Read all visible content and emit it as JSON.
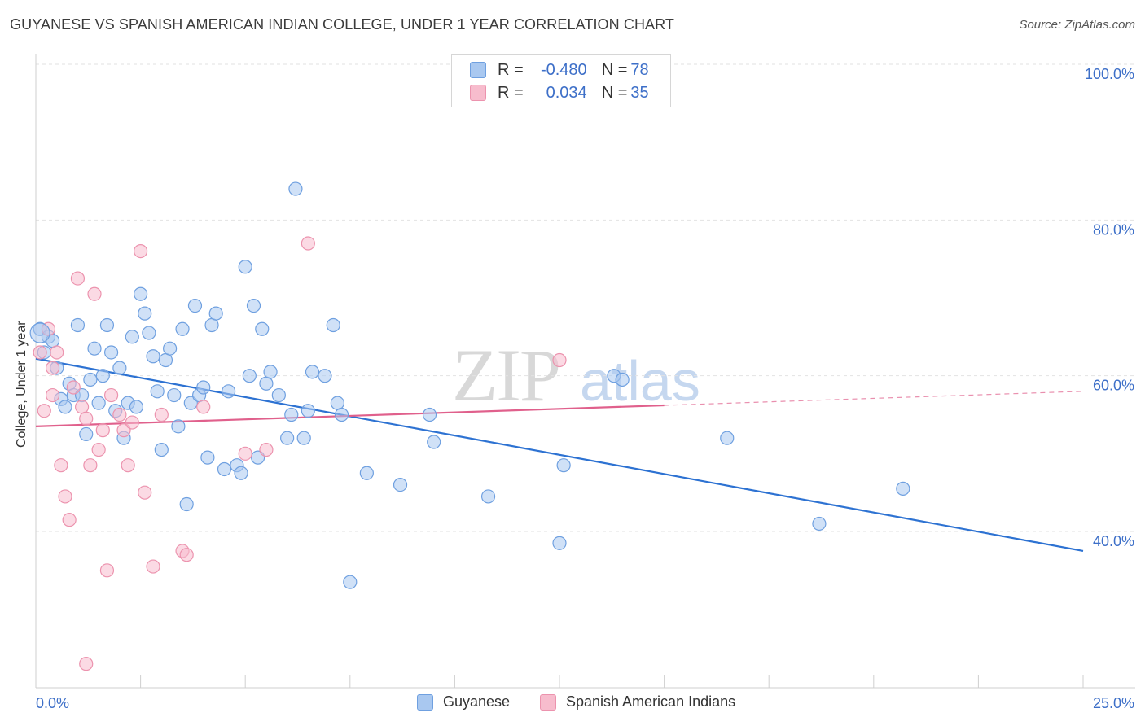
{
  "header": {
    "title": "GUYANESE VS SPANISH AMERICAN INDIAN COLLEGE, UNDER 1 YEAR CORRELATION CHART",
    "source": "Source: ZipAtlas.com"
  },
  "watermark": {
    "text_zip": "ZIP",
    "text_atlas": "atlas"
  },
  "legend": {
    "rows": [
      {
        "r_label": "R = ",
        "r_value": "-0.480",
        "n_label": "N = ",
        "n_value": "78",
        "color": "#a9c8f0"
      },
      {
        "r_label": "R = ",
        "r_value": "0.034",
        "n_label": "N = ",
        "n_value": "35",
        "color": "#f7bccd"
      }
    ]
  },
  "chart_data": {
    "type": "scatter",
    "title": "GUYANESE VS SPANISH AMERICAN INDIAN COLLEGE, UNDER 1 YEAR CORRELATION CHART",
    "xlabel": "",
    "ylabel": "College, Under 1 year",
    "xlim": [
      0,
      25
    ],
    "ylim": [
      20,
      102
    ],
    "x_ticks": [
      0,
      25
    ],
    "x_tick_labels": [
      "0.0%",
      "25.0%"
    ],
    "y_ticks": [
      40,
      60,
      80,
      100
    ],
    "y_tick_labels": [
      "40.0%",
      "60.0%",
      "80.0%",
      "100.0%"
    ],
    "grid": true,
    "legend_position": "top-center",
    "series": [
      {
        "name": "Guyanese",
        "color": "#6fa0e0",
        "fill": "#a9c8f0",
        "trend": {
          "x": [
            0,
            25
          ],
          "y": [
            62.2,
            37.5
          ],
          "color": "#2d72d2"
        },
        "points": [
          [
            0.1,
            66.0
          ],
          [
            0.2,
            63.0
          ],
          [
            0.3,
            65.0
          ],
          [
            0.4,
            64.5
          ],
          [
            0.5,
            61.0
          ],
          [
            0.6,
            57.0
          ],
          [
            0.7,
            56.0
          ],
          [
            0.8,
            59.0
          ],
          [
            0.9,
            57.5
          ],
          [
            1.0,
            66.5
          ],
          [
            1.1,
            57.5
          ],
          [
            1.2,
            52.5
          ],
          [
            1.3,
            59.5
          ],
          [
            1.4,
            63.5
          ],
          [
            1.5,
            56.5
          ],
          [
            1.6,
            60.0
          ],
          [
            1.7,
            66.5
          ],
          [
            1.8,
            63.0
          ],
          [
            1.9,
            55.5
          ],
          [
            2.0,
            61.0
          ],
          [
            2.1,
            52.0
          ],
          [
            2.2,
            56.5
          ],
          [
            2.3,
            65.0
          ],
          [
            2.4,
            56.0
          ],
          [
            2.5,
            70.5
          ],
          [
            2.6,
            68.0
          ],
          [
            2.7,
            65.5
          ],
          [
            2.8,
            62.5
          ],
          [
            2.9,
            58.0
          ],
          [
            3.0,
            50.5
          ],
          [
            3.1,
            62.0
          ],
          [
            3.2,
            63.5
          ],
          [
            3.3,
            57.5
          ],
          [
            3.4,
            53.5
          ],
          [
            3.5,
            66.0
          ],
          [
            3.6,
            43.5
          ],
          [
            3.7,
            56.5
          ],
          [
            3.8,
            69.0
          ],
          [
            3.9,
            57.5
          ],
          [
            4.0,
            58.5
          ],
          [
            4.1,
            49.5
          ],
          [
            4.2,
            66.5
          ],
          [
            4.3,
            68.0
          ],
          [
            4.5,
            48.0
          ],
          [
            4.6,
            58.0
          ],
          [
            4.8,
            48.5
          ],
          [
            4.9,
            47.5
          ],
          [
            5.0,
            74.0
          ],
          [
            5.1,
            60.0
          ],
          [
            5.2,
            69.0
          ],
          [
            5.3,
            49.5
          ],
          [
            5.4,
            66.0
          ],
          [
            5.5,
            59.0
          ],
          [
            5.6,
            60.5
          ],
          [
            5.8,
            57.5
          ],
          [
            6.0,
            52.0
          ],
          [
            6.1,
            55.0
          ],
          [
            6.2,
            84.0
          ],
          [
            6.4,
            52.0
          ],
          [
            6.5,
            55.5
          ],
          [
            6.6,
            60.5
          ],
          [
            6.9,
            60.0
          ],
          [
            7.2,
            56.5
          ],
          [
            7.1,
            66.5
          ],
          [
            7.3,
            55.0
          ],
          [
            7.5,
            33.5
          ],
          [
            7.9,
            47.5
          ],
          [
            8.7,
            46.0
          ],
          [
            9.4,
            55.0
          ],
          [
            9.5,
            51.5
          ],
          [
            10.8,
            44.5
          ],
          [
            12.5,
            38.5
          ],
          [
            12.6,
            48.5
          ],
          [
            13.8,
            60.0
          ],
          [
            14.0,
            59.5
          ],
          [
            16.5,
            52.0
          ],
          [
            18.7,
            41.0
          ],
          [
            20.7,
            45.5
          ]
        ]
      },
      {
        "name": "Spanish American Indians",
        "color": "#ec93ae",
        "fill": "#f7bccd",
        "trend": {
          "x": [
            0,
            15
          ],
          "y": [
            53.5,
            56.2
          ],
          "color": "#e0608c",
          "dashed_extension": {
            "x": [
              15,
              25
            ],
            "y": [
              56.2,
              58.0
            ]
          }
        },
        "points": [
          [
            0.1,
            63.0
          ],
          [
            0.2,
            55.5
          ],
          [
            0.3,
            66.0
          ],
          [
            0.4,
            61.0
          ],
          [
            0.5,
            63.0
          ],
          [
            0.6,
            48.5
          ],
          [
            0.7,
            44.5
          ],
          [
            0.8,
            41.5
          ],
          [
            0.9,
            58.5
          ],
          [
            1.0,
            72.5
          ],
          [
            1.1,
            56.0
          ],
          [
            1.2,
            54.5
          ],
          [
            1.3,
            48.5
          ],
          [
            1.4,
            70.5
          ],
          [
            1.5,
            50.5
          ],
          [
            1.6,
            53.0
          ],
          [
            1.7,
            35.0
          ],
          [
            1.8,
            57.5
          ],
          [
            2.0,
            55.0
          ],
          [
            2.1,
            53.0
          ],
          [
            2.2,
            48.5
          ],
          [
            2.3,
            54.0
          ],
          [
            2.5,
            76.0
          ],
          [
            2.6,
            45.0
          ],
          [
            2.8,
            35.5
          ],
          [
            3.0,
            55.0
          ],
          [
            3.5,
            37.5
          ],
          [
            3.6,
            37.0
          ],
          [
            1.2,
            23.0
          ],
          [
            4.0,
            56.0
          ],
          [
            5.0,
            50.0
          ],
          [
            5.5,
            50.5
          ],
          [
            6.5,
            77.0
          ],
          [
            12.5,
            62.0
          ],
          [
            0.4,
            57.5
          ]
        ]
      }
    ]
  }
}
